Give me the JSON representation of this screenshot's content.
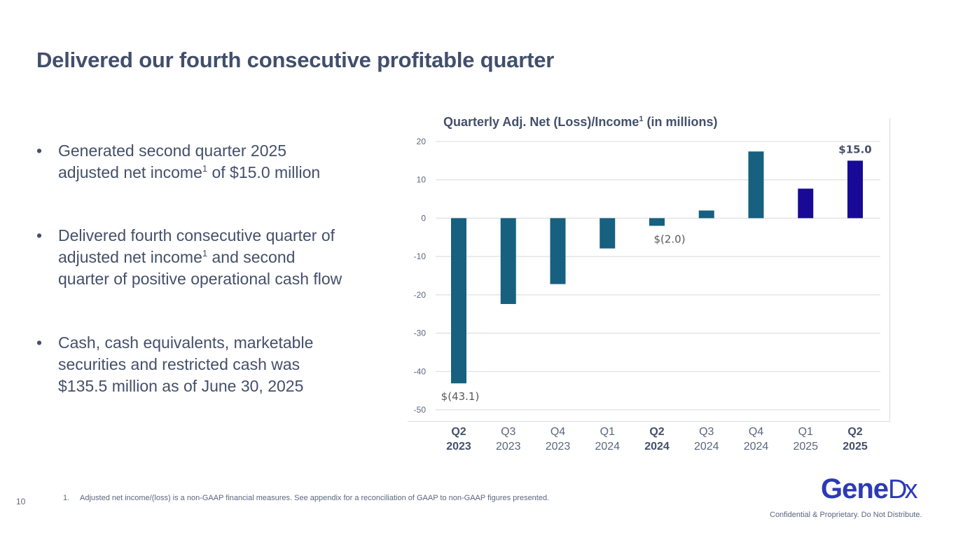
{
  "slide": {
    "title": "Delivered our fourth consecutive profitable quarter",
    "page_number": "10",
    "bullet_glyph": "•",
    "bullets": [
      {
        "parts": [
          "Generated second quarter 2025",
          "adjusted net income",
          "1",
          " of $15.0 million"
        ]
      },
      {
        "parts": [
          "Delivered fourth consecutive quarter of",
          "adjusted net income",
          "1",
          " and second",
          "quarter of positive operational cash flow"
        ]
      },
      {
        "parts": [
          "Cash, cash equivalents, marketable",
          "securities and restricted cash was",
          "$135.5 million as of June 30, 2025"
        ]
      }
    ],
    "footnote": {
      "number": "1.",
      "text": "Adjusted net income/(loss) is a non-GAAP financial measures. See appendix for a reconciliation of GAAP to non-GAAP figures presented."
    },
    "logo": {
      "main": "Gene",
      "suffix": "Dx"
    },
    "confidential": "Confidential & Proprietary. Do Not Distribute."
  },
  "colors": {
    "bar_historical": "#17607f",
    "bar_2025": "#180a96",
    "grid": "#d9d9d9",
    "text": "#44506a"
  },
  "chart_data": {
    "type": "bar",
    "title": "Quarterly Adj. Net (Loss)/Income",
    "title_superscript": "1",
    "title_suffix": " (in millions)",
    "xlabel": "",
    "ylabel": "",
    "ylim": [
      -50,
      20
    ],
    "yticks": [
      20,
      10,
      0,
      -10,
      -20,
      -30,
      -40,
      -50
    ],
    "grid": true,
    "legend": "none",
    "categories": [
      {
        "q": "Q2",
        "year": "2023",
        "bold": true
      },
      {
        "q": "Q3",
        "year": "2023",
        "bold": false
      },
      {
        "q": "Q4",
        "year": "2023",
        "bold": false
      },
      {
        "q": "Q1",
        "year": "2024",
        "bold": false
      },
      {
        "q": "Q2",
        "year": "2024",
        "bold": true
      },
      {
        "q": "Q3",
        "year": "2024",
        "bold": false
      },
      {
        "q": "Q4",
        "year": "2024",
        "bold": false
      },
      {
        "q": "Q1",
        "year": "2025",
        "bold": false
      },
      {
        "q": "Q2",
        "year": "2025",
        "bold": true
      }
    ],
    "values": [
      -43.1,
      -22.4,
      -17.2,
      -7.9,
      -2.0,
      2.0,
      17.4,
      7.7,
      15.0
    ],
    "bar_color_group": [
      "historical",
      "historical",
      "historical",
      "historical",
      "historical",
      "historical",
      "historical",
      "2025",
      "2025"
    ],
    "data_labels": [
      {
        "index": 0,
        "text": "$(43.1)",
        "bold": false
      },
      {
        "index": 4,
        "text": "$(2.0)",
        "bold": false
      },
      {
        "index": 8,
        "text": "$15.0",
        "bold": true
      }
    ]
  }
}
